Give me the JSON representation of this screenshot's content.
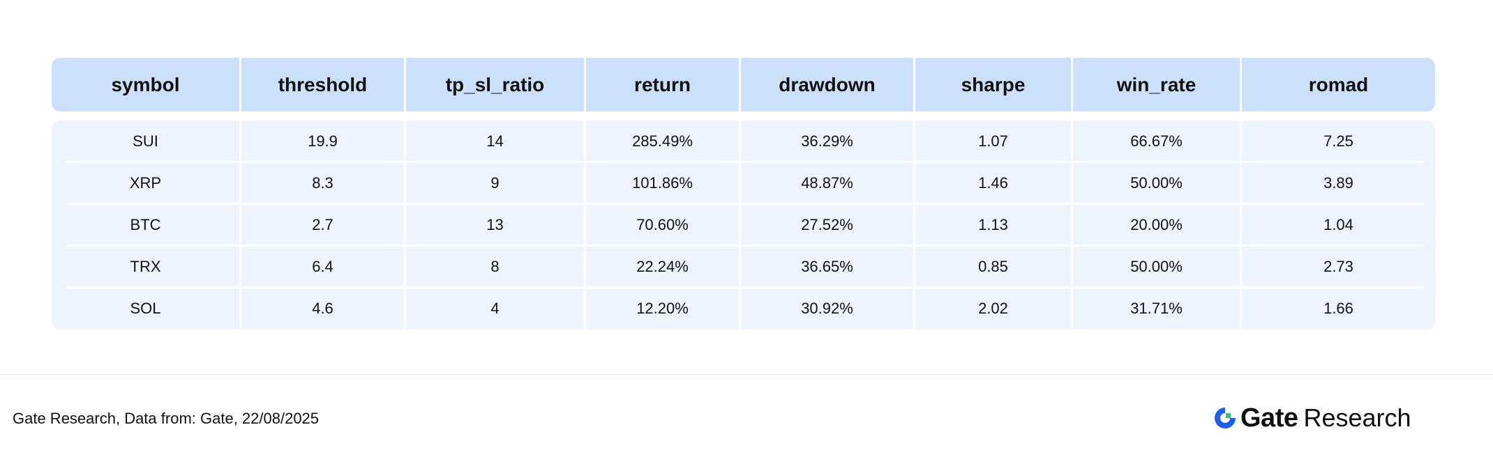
{
  "table": {
    "headers": [
      "symbol",
      "threshold",
      "tp_sl_ratio",
      "return",
      "drawdown",
      "sharpe",
      "win_rate",
      "romad"
    ],
    "rows": [
      [
        "SUI",
        "19.9",
        "14",
        "285.49%",
        "36.29%",
        "1.07",
        "66.67%",
        "7.25"
      ],
      [
        "XRP",
        "8.3",
        "9",
        "101.86%",
        "48.87%",
        "1.46",
        "50.00%",
        "3.89"
      ],
      [
        "BTC",
        "2.7",
        "13",
        "70.60%",
        "27.52%",
        "1.13",
        "20.00%",
        "1.04"
      ],
      [
        "TRX",
        "6.4",
        "8",
        "22.24%",
        "36.65%",
        "0.85",
        "50.00%",
        "2.73"
      ],
      [
        "SOL",
        "4.6",
        "4",
        "12.20%",
        "30.92%",
        "2.02",
        "31.71%",
        "1.66"
      ]
    ]
  },
  "footer": {
    "source_note": "Gate Research, Data from: Gate, 22/08/2025",
    "brand_name": "Gate",
    "brand_sub": "Research",
    "brand_icon": "gate-logo-icon"
  },
  "colors": {
    "header_bg": "#cce0fb",
    "body_bg": "#eef4fd",
    "logo_blue": "#1e5cf6",
    "logo_green": "#18d06b"
  }
}
